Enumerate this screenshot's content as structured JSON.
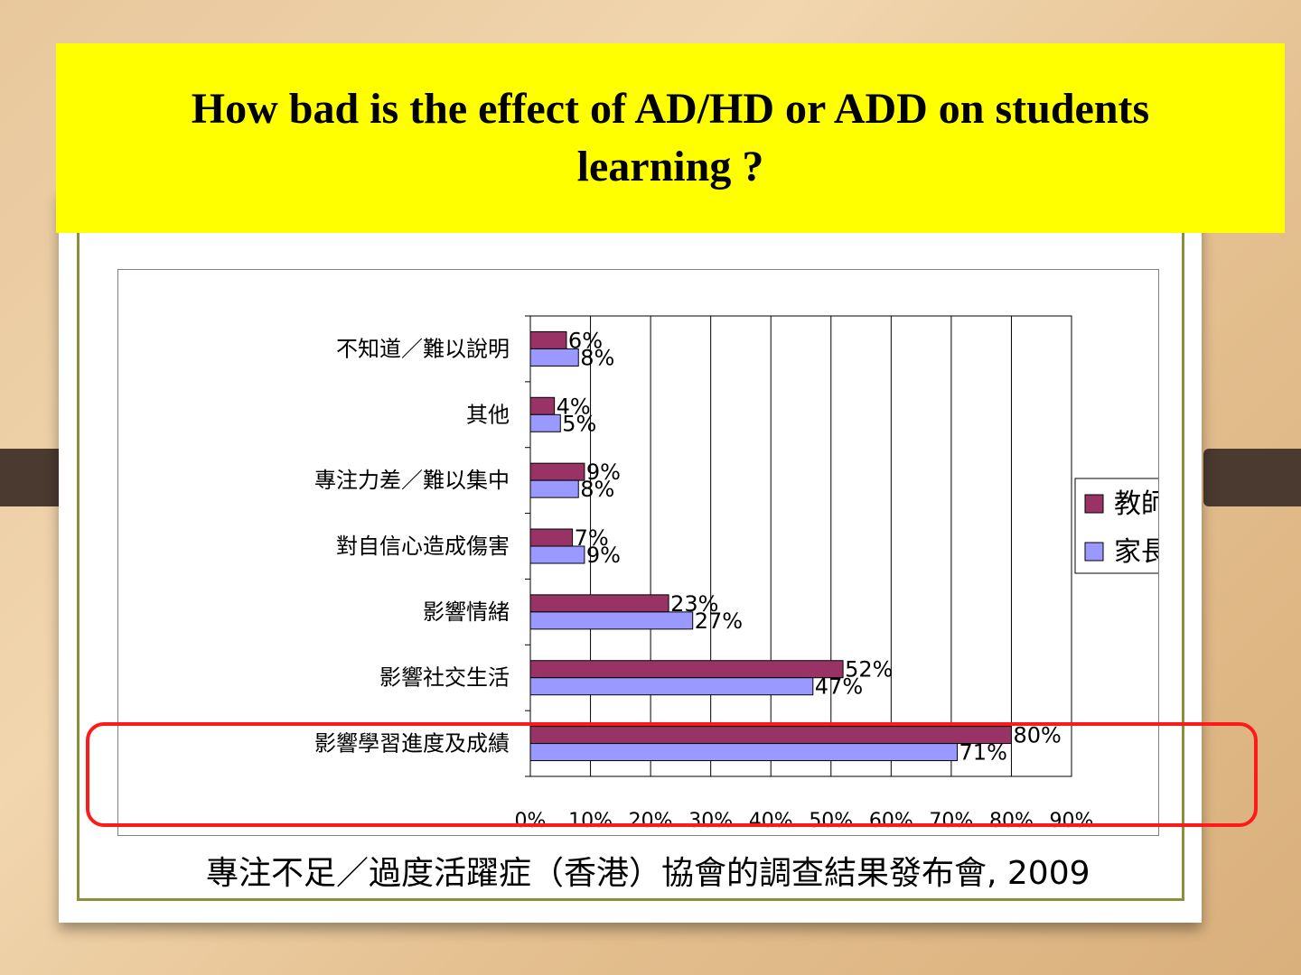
{
  "slide": {
    "title": "How bad is the effect of AD/HD or ADD on students learning ?",
    "source": "專注不足／過度活躍症（香港）協會的調查結果發布會, 2009"
  },
  "colors": {
    "teacher": "#993366",
    "parent": "#9999ff",
    "highlight": "#ff1a1a",
    "banner": "#ffff00"
  },
  "chart_data": {
    "type": "bar",
    "orientation": "horizontal",
    "categories": [
      "不知道／難以說明",
      "其他",
      "專注力差／難以集中",
      "對自信心造成傷害",
      "影響情緒",
      "影響社交生活",
      "影響學習進度及成績"
    ],
    "series": [
      {
        "name": "教師",
        "values": [
          6,
          4,
          9,
          7,
          23,
          52,
          80
        ],
        "labels": [
          "6%",
          "4%",
          "9%",
          "7%",
          "23%",
          "52%",
          "80%"
        ]
      },
      {
        "name": "家長",
        "values": [
          8,
          5,
          8,
          9,
          27,
          47,
          71
        ],
        "labels": [
          "8%",
          "5%",
          "8%",
          "9%",
          "27%",
          "47%",
          "71%"
        ]
      }
    ],
    "xlim": [
      0,
      90
    ],
    "xticks": [
      "0%",
      "10%",
      "20%",
      "30%",
      "40%",
      "50%",
      "60%",
      "70%",
      "80%",
      "90%"
    ],
    "grid": true,
    "legend_position": "right",
    "highlighted_category": "影響學習進度及成績"
  }
}
